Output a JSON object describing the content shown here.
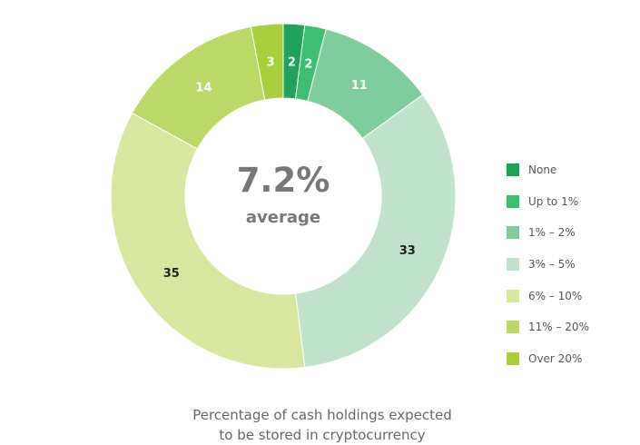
{
  "chart_data": {
    "type": "pie",
    "donut": true,
    "center_value": "7.2%",
    "center_label": "average",
    "title": "",
    "caption_lines": [
      "Percentage of cash holdings expected",
      "to be stored in cryptocurrency"
    ],
    "legend_position": "right",
    "categories": [
      "None",
      "Up to 1%",
      "1% – 2%",
      "3% – 5%",
      "6% – 10%",
      "11% – 20%",
      "Over 20%"
    ],
    "values": [
      2,
      2,
      11,
      33,
      35,
      14,
      3
    ],
    "colors": [
      "#1fa35a",
      "#3dbf72",
      "#7fcc9c",
      "#c1e2cc",
      "#d7e7a0",
      "#bcd867",
      "#a9cf3a"
    ],
    "label_colors": [
      "#ffffff",
      "#ffffff",
      "#ffffff",
      "#222222",
      "#222222",
      "#ffffff",
      "#ffffff"
    ]
  }
}
